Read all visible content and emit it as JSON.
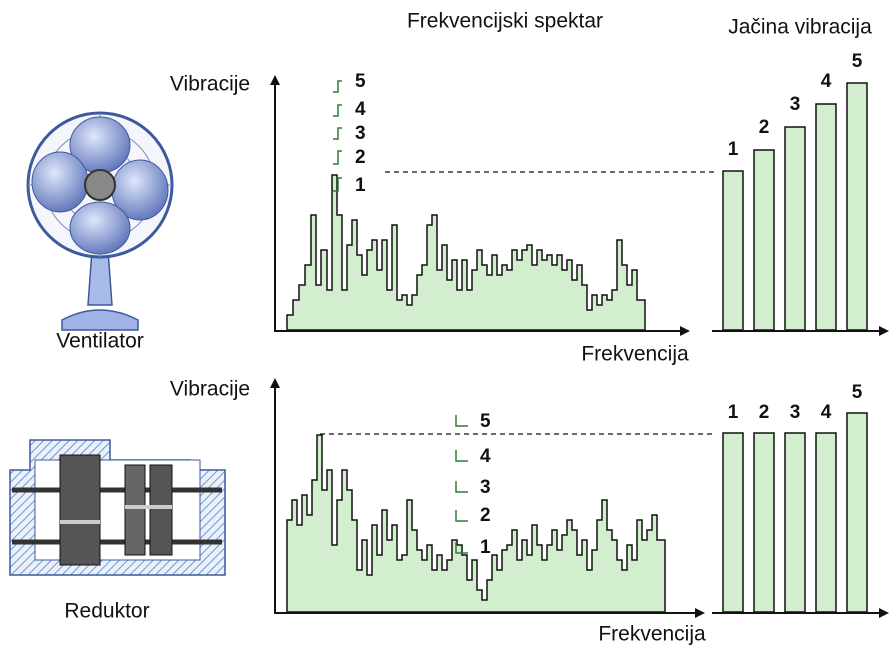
{
  "top_title": "Frekvencijski spektar",
  "right_title": "Jačina vibracija",
  "panels": [
    {
      "device": "Ventilator",
      "y_label": "Vibracije",
      "x_label": "Frekvencija",
      "peak_labels": [
        "1",
        "2",
        "3",
        "4",
        "5"
      ],
      "bar_labels": [
        "1",
        "2",
        "3",
        "4",
        "5"
      ]
    },
    {
      "device": "Reduktor",
      "y_label": "Vibracije",
      "x_label": "Frekvencija",
      "peak_labels": [
        "1",
        "2",
        "3",
        "4",
        "5"
      ],
      "bar_labels": [
        "1",
        "2",
        "3",
        "4",
        "5"
      ]
    }
  ]
}
